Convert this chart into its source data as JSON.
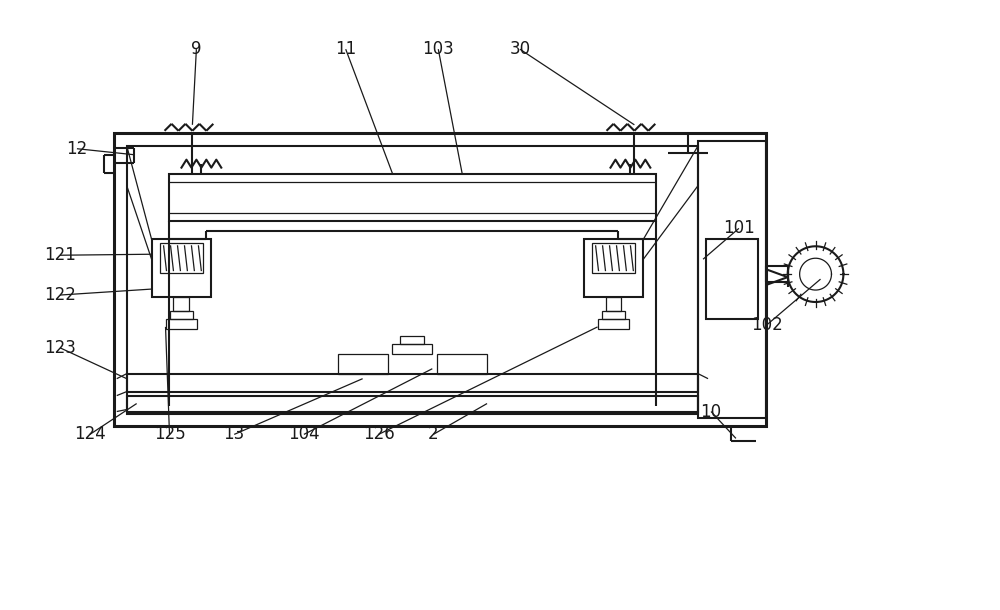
{
  "bg_color": "#ffffff",
  "line_color": "#1a1a1a",
  "lw_thick": 2.2,
  "lw_med": 1.5,
  "lw_thin": 0.9,
  "figsize": [
    10.0,
    6.1
  ],
  "dpi": 100,
  "labels": [
    [
      "9",
      195,
      48
    ],
    [
      "11",
      345,
      48
    ],
    [
      "103",
      438,
      48
    ],
    [
      "30",
      520,
      48
    ],
    [
      "12",
      75,
      148
    ],
    [
      "121",
      58,
      255
    ],
    [
      "122",
      58,
      295
    ],
    [
      "123",
      58,
      348
    ],
    [
      "124",
      88,
      435
    ],
    [
      "125",
      168,
      435
    ],
    [
      "13",
      233,
      435
    ],
    [
      "104",
      303,
      435
    ],
    [
      "126",
      378,
      435
    ],
    [
      "2",
      433,
      435
    ],
    [
      "101",
      740,
      228
    ],
    [
      "102",
      768,
      325
    ],
    [
      "10",
      712,
      412
    ]
  ]
}
